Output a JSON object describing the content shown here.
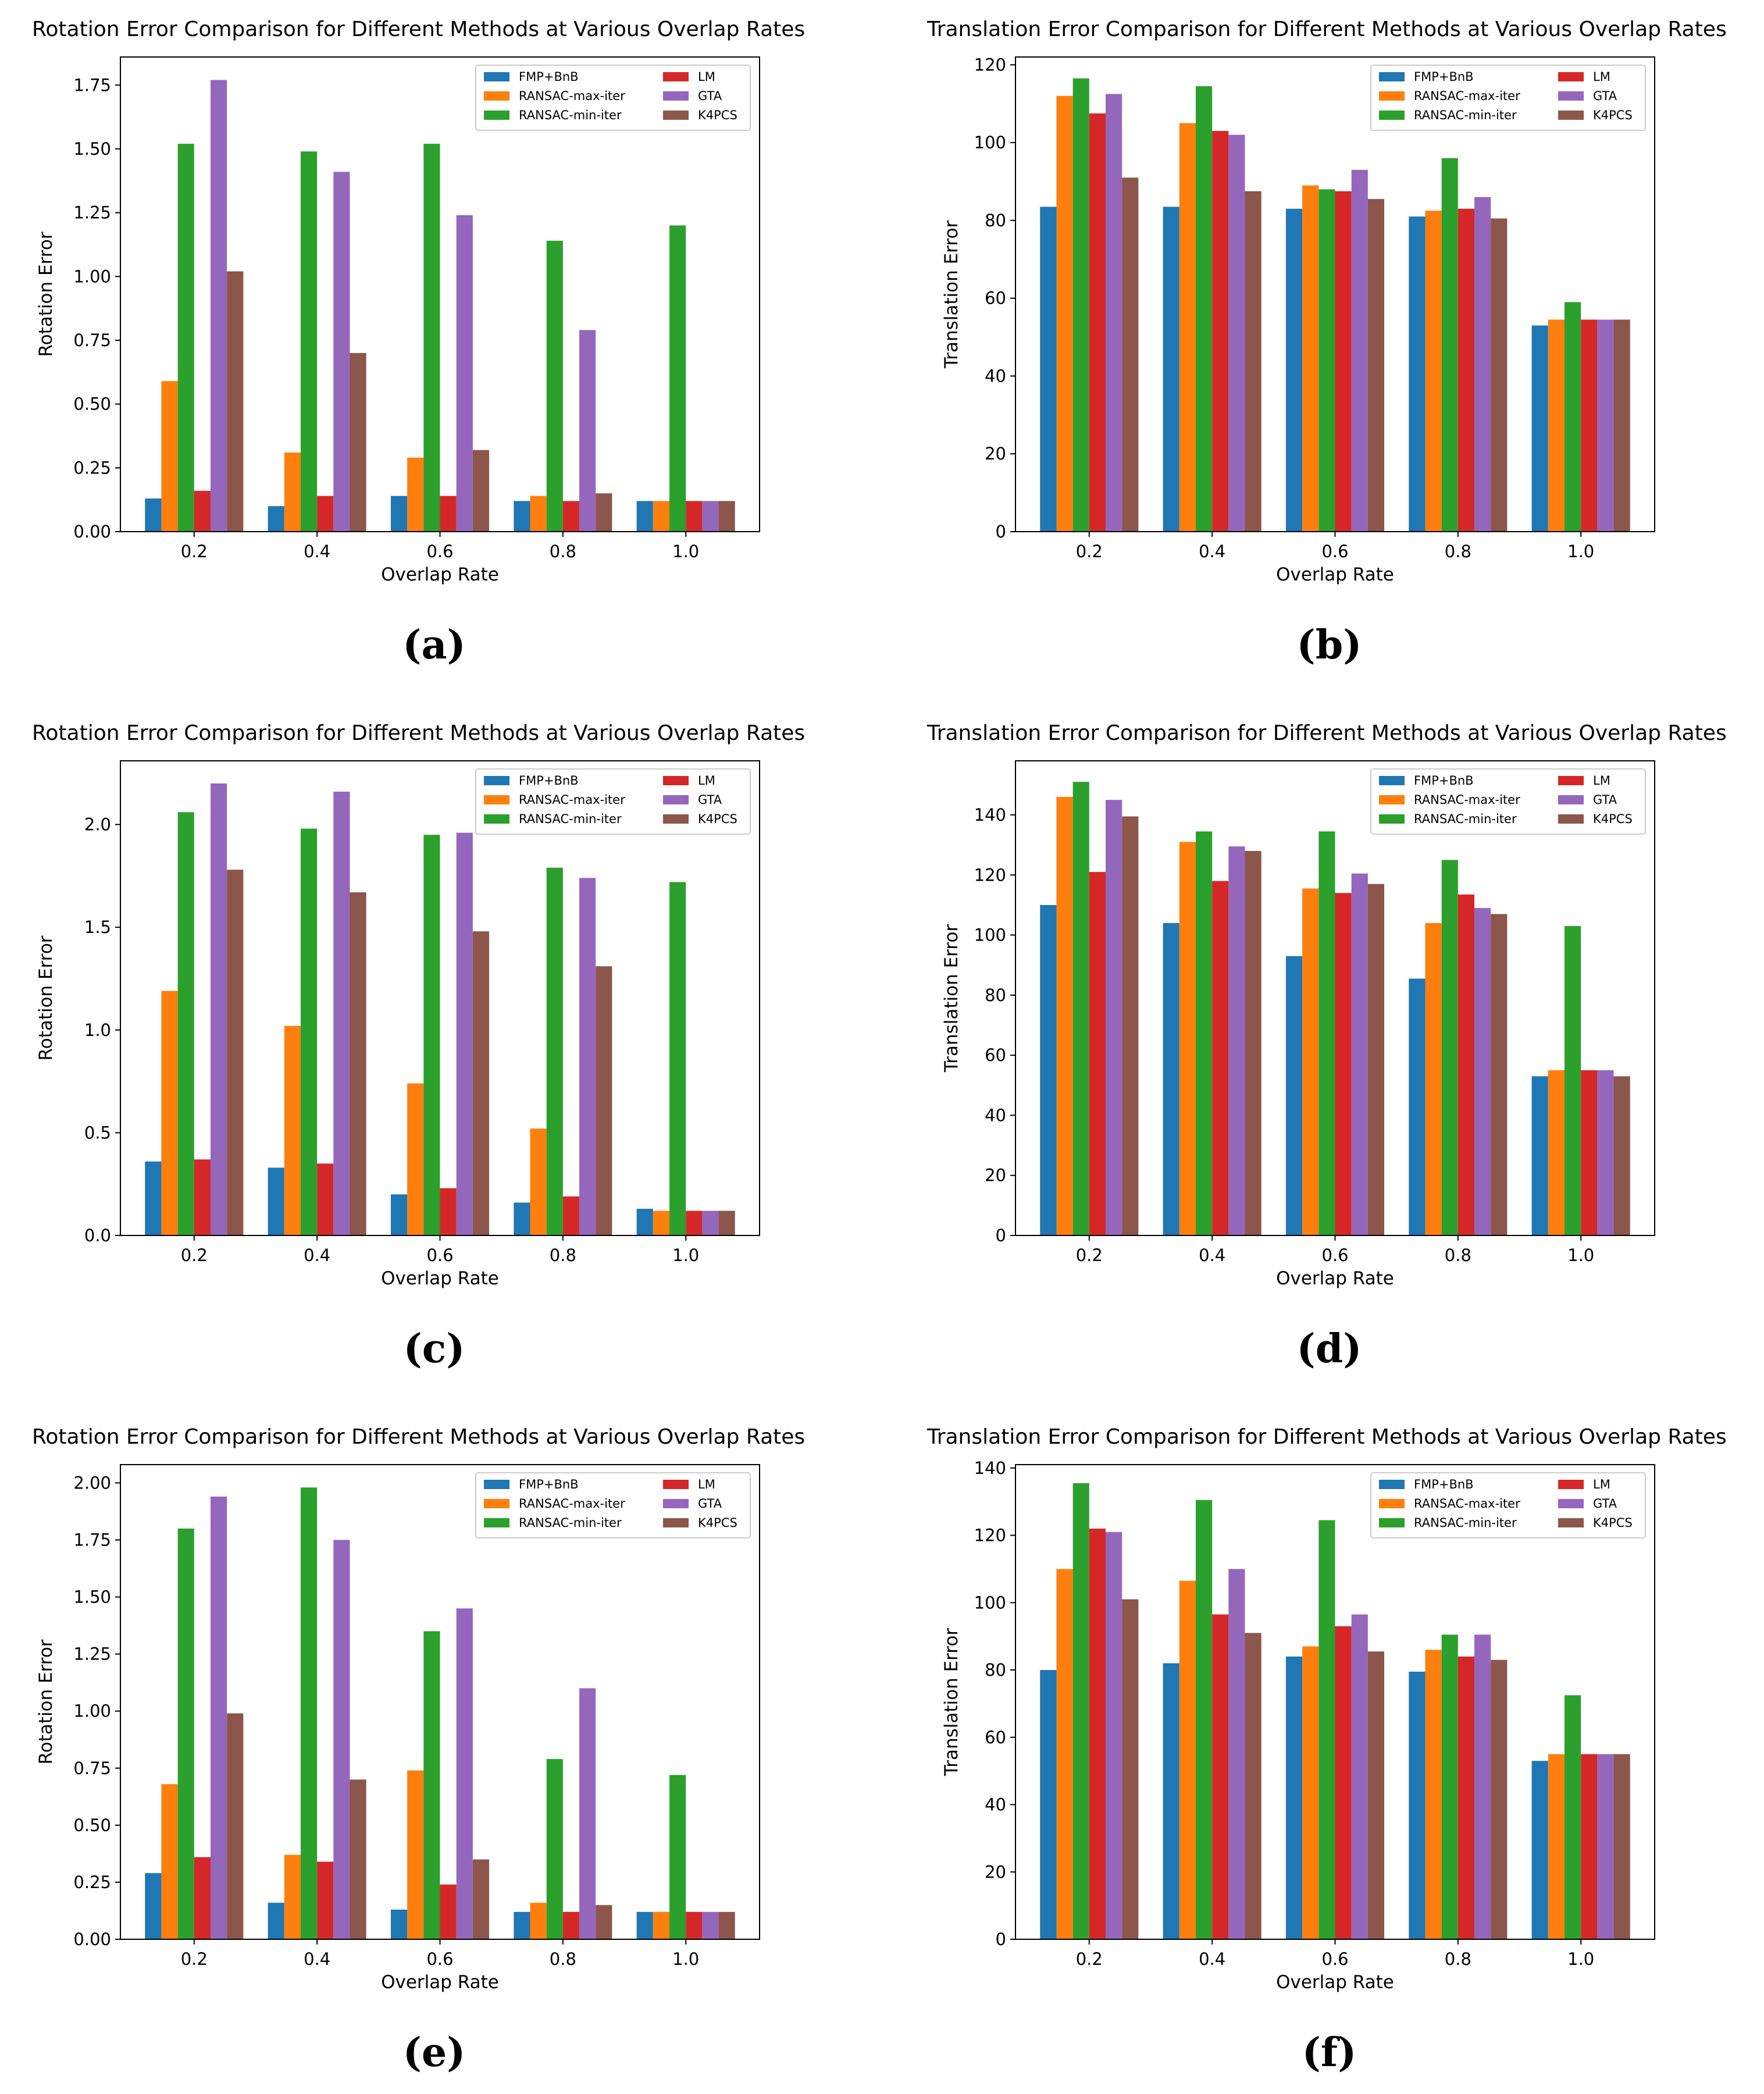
{
  "colors": {
    "FMP+BnB": "#1f77b4",
    "RANSAC-max-iter": "#ff7f0e",
    "RANSAC-min-iter": "#2ca02c",
    "LM": "#d62728",
    "GTA": "#9467bd",
    "K4PCS": "#8c564b"
  },
  "chart_data": [
    {
      "id": "a",
      "caption": "(a)",
      "type": "bar",
      "title": "Rotation Error Comparison for Different Methods at Various Overlap Rates",
      "xlabel": "Overlap Rate",
      "ylabel": "Rotation Error",
      "categories": [
        "0.2",
        "0.4",
        "0.6",
        "0.8",
        "1.0"
      ],
      "ylim": [
        0,
        1.86
      ],
      "yticks": [
        0.0,
        0.25,
        0.5,
        0.75,
        1.0,
        1.25,
        1.5,
        1.75
      ],
      "ytick_labels": [
        "0.00",
        "0.25",
        "0.50",
        "0.75",
        "1.00",
        "1.25",
        "1.50",
        "1.75"
      ],
      "series": [
        {
          "name": "FMP+BnB",
          "values": [
            0.13,
            0.1,
            0.14,
            0.12,
            0.12
          ]
        },
        {
          "name": "RANSAC-max-iter",
          "values": [
            0.59,
            0.31,
            0.29,
            0.14,
            0.12
          ]
        },
        {
          "name": "RANSAC-min-iter",
          "values": [
            1.52,
            1.49,
            1.52,
            1.14,
            1.2
          ]
        },
        {
          "name": "LM",
          "values": [
            0.16,
            0.14,
            0.14,
            0.12,
            0.12
          ]
        },
        {
          "name": "GTA",
          "values": [
            1.77,
            1.41,
            1.24,
            0.79,
            0.12
          ]
        },
        {
          "name": "K4PCS",
          "values": [
            1.02,
            0.7,
            0.32,
            0.15,
            0.12
          ]
        }
      ]
    },
    {
      "id": "b",
      "caption": "(b)",
      "type": "bar",
      "title": "Translation Error Comparison for Different Methods at Various Overlap Rates",
      "xlabel": "Overlap Rate",
      "ylabel": "Translation Error",
      "categories": [
        "0.2",
        "0.4",
        "0.6",
        "0.8",
        "1.0"
      ],
      "ylim": [
        0,
        122
      ],
      "yticks": [
        0,
        20,
        40,
        60,
        80,
        100,
        120
      ],
      "ytick_labels": [
        "0",
        "20",
        "40",
        "60",
        "80",
        "100",
        "120"
      ],
      "series": [
        {
          "name": "FMP+BnB",
          "values": [
            83.5,
            83.5,
            83,
            81,
            53
          ]
        },
        {
          "name": "RANSAC-max-iter",
          "values": [
            112,
            105,
            89,
            82.5,
            54.5
          ]
        },
        {
          "name": "RANSAC-min-iter",
          "values": [
            116.5,
            114.5,
            88,
            96,
            59
          ]
        },
        {
          "name": "LM",
          "values": [
            107.5,
            103,
            87.5,
            83,
            54.5
          ]
        },
        {
          "name": "GTA",
          "values": [
            112.5,
            102,
            93,
            86,
            54.5
          ]
        },
        {
          "name": "K4PCS",
          "values": [
            91,
            87.5,
            85.5,
            80.5,
            54.5
          ]
        }
      ]
    },
    {
      "id": "c",
      "caption": "(c)",
      "type": "bar",
      "title": "Rotation Error Comparison for Different Methods at Various Overlap Rates",
      "xlabel": "Overlap Rate",
      "ylabel": "Rotation Error",
      "categories": [
        "0.2",
        "0.4",
        "0.6",
        "0.8",
        "1.0"
      ],
      "ylim": [
        0,
        2.31
      ],
      "yticks": [
        0.0,
        0.5,
        1.0,
        1.5,
        2.0
      ],
      "ytick_labels": [
        "0.0",
        "0.5",
        "1.0",
        "1.5",
        "2.0"
      ],
      "series": [
        {
          "name": "FMP+BnB",
          "values": [
            0.36,
            0.33,
            0.2,
            0.16,
            0.13
          ]
        },
        {
          "name": "RANSAC-max-iter",
          "values": [
            1.19,
            1.02,
            0.74,
            0.52,
            0.12
          ]
        },
        {
          "name": "RANSAC-min-iter",
          "values": [
            2.06,
            1.98,
            1.95,
            1.79,
            1.72
          ]
        },
        {
          "name": "LM",
          "values": [
            0.37,
            0.35,
            0.23,
            0.19,
            0.12
          ]
        },
        {
          "name": "GTA",
          "values": [
            2.2,
            2.16,
            1.96,
            1.74,
            0.12
          ]
        },
        {
          "name": "K4PCS",
          "values": [
            1.78,
            1.67,
            1.48,
            1.31,
            0.12
          ]
        }
      ]
    },
    {
      "id": "d",
      "caption": "(d)",
      "type": "bar",
      "title": "Translation Error Comparison for Different Methods at Various Overlap Rates",
      "xlabel": "Overlap Rate",
      "ylabel": "Translation Error",
      "categories": [
        "0.2",
        "0.4",
        "0.6",
        "0.8",
        "1.0"
      ],
      "ylim": [
        0,
        158
      ],
      "yticks": [
        0,
        20,
        40,
        60,
        80,
        100,
        120,
        140
      ],
      "ytick_labels": [
        "0",
        "20",
        "40",
        "60",
        "80",
        "100",
        "120",
        "140"
      ],
      "series": [
        {
          "name": "FMP+BnB",
          "values": [
            110,
            104,
            93,
            85.5,
            53
          ]
        },
        {
          "name": "RANSAC-max-iter",
          "values": [
            146,
            131,
            115.5,
            104,
            55
          ]
        },
        {
          "name": "RANSAC-min-iter",
          "values": [
            151,
            134.5,
            134.5,
            125,
            103
          ]
        },
        {
          "name": "LM",
          "values": [
            121,
            118,
            114,
            113.5,
            55
          ]
        },
        {
          "name": "GTA",
          "values": [
            145,
            129.5,
            120.5,
            109,
            55
          ]
        },
        {
          "name": "K4PCS",
          "values": [
            139.5,
            128,
            117,
            107,
            53
          ]
        }
      ]
    },
    {
      "id": "e",
      "caption": "(e)",
      "type": "bar",
      "title": "Rotation Error Comparison for Different Methods at Various Overlap Rates",
      "xlabel": "Overlap Rate",
      "ylabel": "Rotation Error",
      "categories": [
        "0.2",
        "0.4",
        "0.6",
        "0.8",
        "1.0"
      ],
      "ylim": [
        0,
        2.08
      ],
      "yticks": [
        0.0,
        0.25,
        0.5,
        0.75,
        1.0,
        1.25,
        1.5,
        1.75,
        2.0
      ],
      "ytick_labels": [
        "0.00",
        "0.25",
        "0.50",
        "0.75",
        "1.00",
        "1.25",
        "1.50",
        "1.75",
        "2.00"
      ],
      "series": [
        {
          "name": "FMP+BnB",
          "values": [
            0.29,
            0.16,
            0.13,
            0.12,
            0.12
          ]
        },
        {
          "name": "RANSAC-max-iter",
          "values": [
            0.68,
            0.37,
            0.74,
            0.16,
            0.12
          ]
        },
        {
          "name": "RANSAC-min-iter",
          "values": [
            1.8,
            1.98,
            1.35,
            0.79,
            0.72
          ]
        },
        {
          "name": "LM",
          "values": [
            0.36,
            0.34,
            0.24,
            0.12,
            0.12
          ]
        },
        {
          "name": "GTA",
          "values": [
            1.94,
            1.75,
            1.45,
            1.1,
            0.12
          ]
        },
        {
          "name": "K4PCS",
          "values": [
            0.99,
            0.7,
            0.35,
            0.15,
            0.12
          ]
        }
      ]
    },
    {
      "id": "f",
      "caption": "(f)",
      "type": "bar",
      "title": "Translation Error Comparison for Different Methods at Various Overlap Rates",
      "xlabel": "Overlap Rate",
      "ylabel": "Translation Error",
      "categories": [
        "0.2",
        "0.4",
        "0.6",
        "0.8",
        "1.0"
      ],
      "ylim": [
        0,
        141
      ],
      "yticks": [
        0,
        20,
        40,
        60,
        80,
        100,
        120,
        140
      ],
      "ytick_labels": [
        "0",
        "20",
        "40",
        "60",
        "80",
        "100",
        "120",
        "140"
      ],
      "series": [
        {
          "name": "FMP+BnB",
          "values": [
            80,
            82,
            84,
            79.5,
            53
          ]
        },
        {
          "name": "RANSAC-max-iter",
          "values": [
            110,
            106.5,
            87,
            86,
            55
          ]
        },
        {
          "name": "RANSAC-min-iter",
          "values": [
            135.5,
            130.5,
            124.5,
            90.5,
            72.5
          ]
        },
        {
          "name": "LM",
          "values": [
            122,
            96.5,
            93,
            84,
            55
          ]
        },
        {
          "name": "GTA",
          "values": [
            121,
            110,
            96.5,
            90.5,
            55
          ]
        },
        {
          "name": "K4PCS",
          "values": [
            101,
            91,
            85.5,
            83,
            55
          ]
        }
      ]
    }
  ]
}
